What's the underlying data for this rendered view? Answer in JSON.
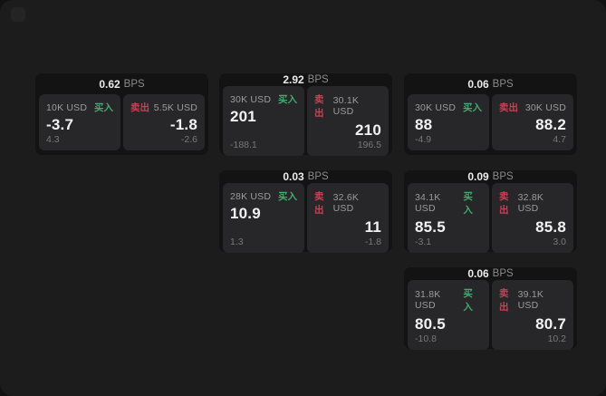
{
  "labels": {
    "bps_suffix": "BPS",
    "buy": "买入",
    "sell": "卖出"
  },
  "colors": {
    "buy_green": "#47a871",
    "sell_red": "#c24455",
    "page_background": "#1c1c1c",
    "card_background": "#131313",
    "panel_background": "#272729"
  },
  "icons": {
    "menu": "app-menu-icon"
  },
  "cards": [
    {
      "spread_bps": "0.62",
      "buy": {
        "amount": "10K USD",
        "value": "-3.7",
        "delta": "4.3"
      },
      "sell": {
        "amount": "5.5K USD",
        "value": "-1.8",
        "delta": "-2.6"
      }
    },
    {
      "spread_bps": "2.92",
      "buy": {
        "amount": "30K USD",
        "value": "201",
        "delta": "-188.1"
      },
      "sell": {
        "amount": "30.1K USD",
        "value": "210",
        "delta": "196.5"
      }
    },
    {
      "spread_bps": "0.06",
      "buy": {
        "amount": "30K USD",
        "value": "88",
        "delta": "-4.9"
      },
      "sell": {
        "amount": "30K USD",
        "value": "88.2",
        "delta": "4.7"
      }
    },
    {
      "spread_bps": "0.03",
      "buy": {
        "amount": "28K USD",
        "value": "10.9",
        "delta": "1.3"
      },
      "sell": {
        "amount": "32.6K USD",
        "value": "11",
        "delta": "-1.8"
      }
    },
    {
      "spread_bps": "0.09",
      "buy": {
        "amount": "34.1K USD",
        "value": "85.5",
        "delta": "-3.1"
      },
      "sell": {
        "amount": "32.8K USD",
        "value": "85.8",
        "delta": "3.0"
      }
    },
    {
      "spread_bps": "0.06",
      "buy": {
        "amount": "31.8K USD",
        "value": "80.5",
        "delta": "-10.8"
      },
      "sell": {
        "amount": "39.1K USD",
        "value": "80.7",
        "delta": "10.2"
      }
    }
  ]
}
